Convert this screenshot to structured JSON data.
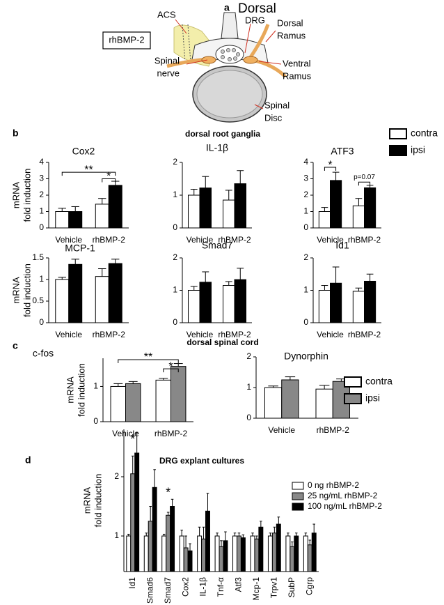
{
  "diagram": {
    "label": "a",
    "title": "Dorsal",
    "box": "rhBMP-2",
    "callouts": [
      [
        "ACS"
      ],
      [
        "DRG"
      ],
      [
        "Dorsal",
        "Ramus"
      ],
      [
        "Spinal",
        "nerve"
      ],
      [
        "Ventral",
        "Ramus"
      ],
      [
        "Spinal",
        "Disc"
      ]
    ]
  },
  "sections": [
    {
      "label": "b",
      "title": "dorsal root ganglia"
    },
    {
      "label": "c",
      "title": "dorsal spinal cord"
    },
    {
      "label": "d",
      "title": "DRG explant cultures"
    }
  ],
  "chart_data": [
    {
      "type": "bar",
      "title": "Cox2",
      "ylabel": [
        "mRNA",
        "fold induction"
      ],
      "categories": [
        "Vehicle",
        "rhBMP-2"
      ],
      "ylim": [
        0,
        4
      ],
      "yticks": [
        0,
        1,
        2,
        3,
        4
      ],
      "series": [
        {
          "name": "contra",
          "color": "#ffffff",
          "values": [
            1.0,
            1.45
          ],
          "errors": [
            0.2,
            0.35
          ]
        },
        {
          "name": "ipsi",
          "color": "#000000",
          "values": [
            1.0,
            2.6
          ],
          "errors": [
            0.3,
            0.25
          ]
        }
      ],
      "annotations": [
        "**",
        "*"
      ]
    },
    {
      "type": "bar",
      "title": "IL-1β",
      "categories": [
        "Vehicle",
        "rhBMP-2"
      ],
      "ylim": [
        0,
        2
      ],
      "yticks": [
        0,
        1,
        2
      ],
      "series": [
        {
          "name": "contra",
          "color": "#ffffff",
          "values": [
            1.0,
            0.85
          ],
          "errors": [
            0.18,
            0.3
          ]
        },
        {
          "name": "ipsi",
          "color": "#000000",
          "values": [
            1.22,
            1.35
          ],
          "errors": [
            0.35,
            0.4
          ]
        }
      ]
    },
    {
      "type": "bar",
      "title": "ATF3",
      "categories": [
        "Vehicle",
        "rhBMP-2"
      ],
      "ylim": [
        0,
        4
      ],
      "yticks": [
        0,
        1,
        2,
        3,
        4
      ],
      "legend": "outside-top-right",
      "series": [
        {
          "name": "contra",
          "color": "#ffffff",
          "values": [
            1.0,
            1.35
          ],
          "errors": [
            0.25,
            0.45
          ]
        },
        {
          "name": "ipsi",
          "color": "#000000",
          "values": [
            2.9,
            2.45
          ],
          "errors": [
            0.5,
            0.15
          ]
        }
      ],
      "annotations": [
        "*",
        "p=0.07"
      ]
    },
    {
      "type": "bar",
      "title": "MCP-1",
      "ylabel": [
        "mRNA",
        "fold induction"
      ],
      "categories": [
        "Vehicle",
        "rhBMP-2"
      ],
      "ylim": [
        0,
        1.5
      ],
      "yticks": [
        0,
        0.5,
        1,
        1.5
      ],
      "series": [
        {
          "name": "contra",
          "color": "#ffffff",
          "values": [
            1.0,
            1.07
          ],
          "errors": [
            0.05,
            0.18
          ]
        },
        {
          "name": "ipsi",
          "color": "#000000",
          "values": [
            1.35,
            1.37
          ],
          "errors": [
            0.12,
            0.1
          ]
        }
      ]
    },
    {
      "type": "bar",
      "title": "Smad7",
      "categories": [
        "Vehicle",
        "rhBMP-2"
      ],
      "ylim": [
        0,
        2
      ],
      "yticks": [
        0,
        1,
        2
      ],
      "series": [
        {
          "name": "contra",
          "color": "#ffffff",
          "values": [
            1.0,
            1.15
          ],
          "errors": [
            0.12,
            0.12
          ]
        },
        {
          "name": "ipsi",
          "color": "#000000",
          "values": [
            1.25,
            1.33
          ],
          "errors": [
            0.32,
            0.35
          ]
        }
      ]
    },
    {
      "type": "bar",
      "title": "Id1",
      "categories": [
        "Vehicle",
        "rhBMP-2"
      ],
      "ylim": [
        0,
        2
      ],
      "yticks": [
        0,
        1,
        2
      ],
      "series": [
        {
          "name": "contra",
          "color": "#ffffff",
          "values": [
            1.0,
            0.97
          ],
          "errors": [
            0.15,
            0.1
          ]
        },
        {
          "name": "ipsi",
          "color": "#000000",
          "values": [
            1.22,
            1.28
          ],
          "errors": [
            0.5,
            0.22
          ]
        }
      ]
    },
    {
      "type": "bar",
      "title": "c-fos",
      "ylabel": [
        "mRNA",
        "fold induction"
      ],
      "categories": [
        "Vehicle",
        "rhBMP-2"
      ],
      "ylim": [
        0,
        1.8
      ],
      "yticks": [
        0,
        1
      ],
      "series": [
        {
          "name": "contra",
          "color": "#ffffff",
          "values": [
            1.0,
            1.18
          ],
          "errors": [
            0.08,
            0.05
          ]
        },
        {
          "name": "ipsi",
          "color": "#888888",
          "values": [
            1.08,
            1.57
          ],
          "errors": [
            0.06,
            0.08
          ]
        }
      ],
      "annotations": [
        "**",
        "*"
      ]
    },
    {
      "type": "bar",
      "title": "Dynorphin",
      "categories": [
        "Vehicle",
        "rhBMP-2"
      ],
      "ylim": [
        0,
        2
      ],
      "yticks": [
        0,
        1,
        2
      ],
      "legend": "outside-right",
      "series": [
        {
          "name": "contra",
          "color": "#ffffff",
          "values": [
            1.0,
            0.95
          ],
          "errors": [
            0.05,
            0.12
          ]
        },
        {
          "name": "ipsi",
          "color": "#888888",
          "values": [
            1.25,
            1.2
          ],
          "errors": [
            0.1,
            0.08
          ]
        }
      ]
    },
    {
      "type": "bar",
      "ylabel": [
        "mRNA",
        "fold induction"
      ],
      "categories": [
        "Id1",
        "Smad6",
        "Smad7",
        "Cox2",
        "IL-1β",
        "Tnf-α",
        "Atf3",
        "Mcp-1",
        "Trpv1",
        "SubP",
        "Cgrp"
      ],
      "ylim": [
        0.4,
        2.8
      ],
      "yticks": [
        1,
        2
      ],
      "legend": "top-right",
      "series": [
        {
          "name": "0 ng rhBMP-2",
          "color": "#ffffff",
          "values": [
            1.0,
            1.0,
            1.0,
            1.0,
            1.0,
            1.0,
            1.0,
            1.0,
            1.0,
            1.0,
            1.0
          ],
          "errors": [
            0.03,
            0.05,
            0.03,
            0.1,
            0.15,
            0.05,
            0.05,
            0.05,
            0.05,
            0.05,
            0.05
          ]
        },
        {
          "name": "25 ng/mL rhBMP-2",
          "color": "#888888",
          "values": [
            2.05,
            1.25,
            1.35,
            0.8,
            0.95,
            0.82,
            1.0,
            0.95,
            1.05,
            0.82,
            0.85
          ],
          "errors": [
            0.3,
            0.25,
            0.05,
            0.2,
            0.2,
            0.1,
            0.05,
            0.05,
            0.1,
            0.08,
            0.08
          ]
        },
        {
          "name": "100 ng/mL rhBMP-2",
          "color": "#000000",
          "values": [
            2.4,
            1.82,
            1.5,
            0.75,
            1.42,
            0.92,
            0.97,
            1.15,
            1.2,
            1.0,
            1.05
          ],
          "errors": [
            0.35,
            0.3,
            0.12,
            0.12,
            0.3,
            0.15,
            0.05,
            0.1,
            0.12,
            0.05,
            0.15
          ]
        }
      ],
      "annotations": [
        "*",
        "*"
      ]
    }
  ]
}
